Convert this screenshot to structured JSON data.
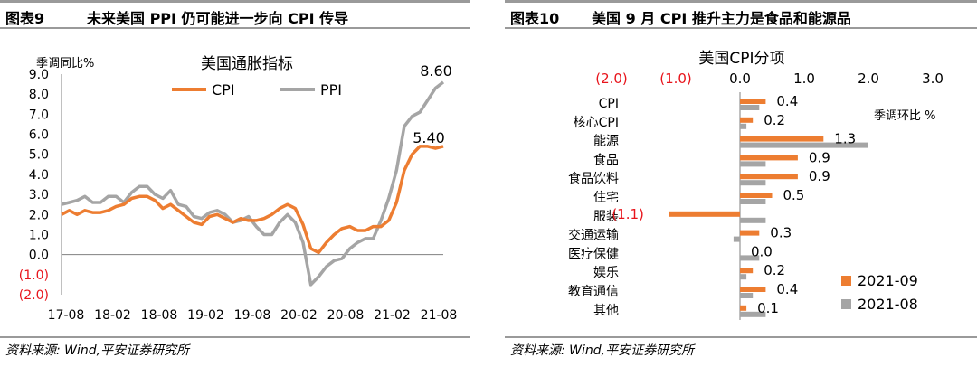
{
  "left": {
    "label": "图表9",
    "title": "未来美国 PPI 仍可能进一步向 CPI 传导",
    "source": "资料来源: Wind,平安证券研究所",
    "chart_data": {
      "type": "line",
      "title": "美国通胀指标",
      "ylabel": "季调同比%",
      "ylim": [
        -2.0,
        9.0
      ],
      "yticks": [
        "9.0",
        "8.0",
        "7.0",
        "6.0",
        "5.0",
        "4.0",
        "3.0",
        "2.0",
        "1.0",
        "0.0",
        "(1.0)",
        "(2.0)"
      ],
      "xticks": [
        "17-08",
        "18-02",
        "18-08",
        "19-02",
        "19-08",
        "20-02",
        "20-08",
        "21-02",
        "21-08"
      ],
      "legend_position": "top",
      "end_labels": [
        "8.60",
        "5.40"
      ],
      "series": [
        {
          "name": "CPI",
          "color": "#ED7D31",
          "values": [
            2.0,
            2.2,
            2.0,
            2.2,
            2.1,
            2.1,
            2.2,
            2.4,
            2.5,
            2.8,
            2.9,
            2.9,
            2.7,
            2.3,
            2.5,
            2.2,
            1.9,
            1.6,
            1.5,
            1.9,
            2.0,
            1.8,
            1.6,
            1.8,
            1.7,
            1.7,
            1.8,
            2.0,
            2.3,
            2.5,
            2.3,
            1.5,
            0.3,
            0.1,
            0.6,
            1.0,
            1.3,
            1.4,
            1.2,
            1.2,
            1.4,
            1.4,
            1.7,
            2.6,
            4.2,
            5.0,
            5.4,
            5.4,
            5.3,
            5.4
          ]
        },
        {
          "name": "PPI",
          "color": "#A5A5A5",
          "values": [
            2.5,
            2.6,
            2.7,
            2.9,
            2.6,
            2.6,
            2.9,
            2.9,
            2.6,
            3.1,
            3.4,
            3.4,
            3.0,
            2.8,
            3.2,
            2.5,
            2.4,
            1.9,
            1.8,
            2.1,
            2.2,
            2.0,
            1.6,
            1.7,
            1.9,
            1.4,
            1.0,
            1.0,
            1.6,
            2.0,
            1.6,
            0.6,
            -1.5,
            -1.1,
            -0.6,
            -0.3,
            -0.2,
            0.3,
            0.6,
            0.8,
            0.8,
            1.7,
            2.8,
            4.2,
            6.4,
            6.9,
            7.1,
            7.7,
            8.3,
            8.6
          ]
        }
      ]
    }
  },
  "right": {
    "label": "图表10",
    "title": "美国 9 月 CPI 推升主力是食品和能源品",
    "source": "资料来源: Wind,平安证券研究所",
    "chart_data": {
      "type": "bar",
      "orientation": "horizontal",
      "title": "美国CPI分项",
      "unit_label": "季调环比 %",
      "xlim": [
        -2.0,
        3.0
      ],
      "xticks": [
        "(2.0)",
        "(1.0)",
        "0.0",
        "1.0",
        "2.0",
        "3.0"
      ],
      "xtick_values": [
        -2,
        -1,
        0,
        1,
        2,
        3
      ],
      "legend_position": "bottom-right",
      "categories": [
        "CPI",
        "核心CPI",
        "能源",
        "食品",
        "食品饮料",
        "住宅",
        "服装",
        "交通运输",
        "医疗保健",
        "娱乐",
        "教育通信",
        "其他"
      ],
      "series": [
        {
          "name": "2021-09",
          "color": "#ED7D31",
          "values": [
            0.4,
            0.2,
            1.3,
            0.9,
            0.9,
            0.5,
            -1.1,
            0.3,
            0.0,
            0.2,
            0.4,
            0.1
          ],
          "labels": [
            "0.4",
            "0.2",
            "1.3",
            "0.9",
            "0.9",
            "0.5",
            "(1.1)",
            "0.3",
            "0.0",
            "0.2",
            "0.4",
            "0.1"
          ]
        },
        {
          "name": "2021-08",
          "color": "#A5A5A5",
          "values": [
            0.3,
            0.1,
            2.0,
            0.4,
            0.4,
            0.4,
            0.4,
            -0.1,
            0.3,
            0.1,
            0.2,
            0.4
          ]
        }
      ]
    }
  }
}
